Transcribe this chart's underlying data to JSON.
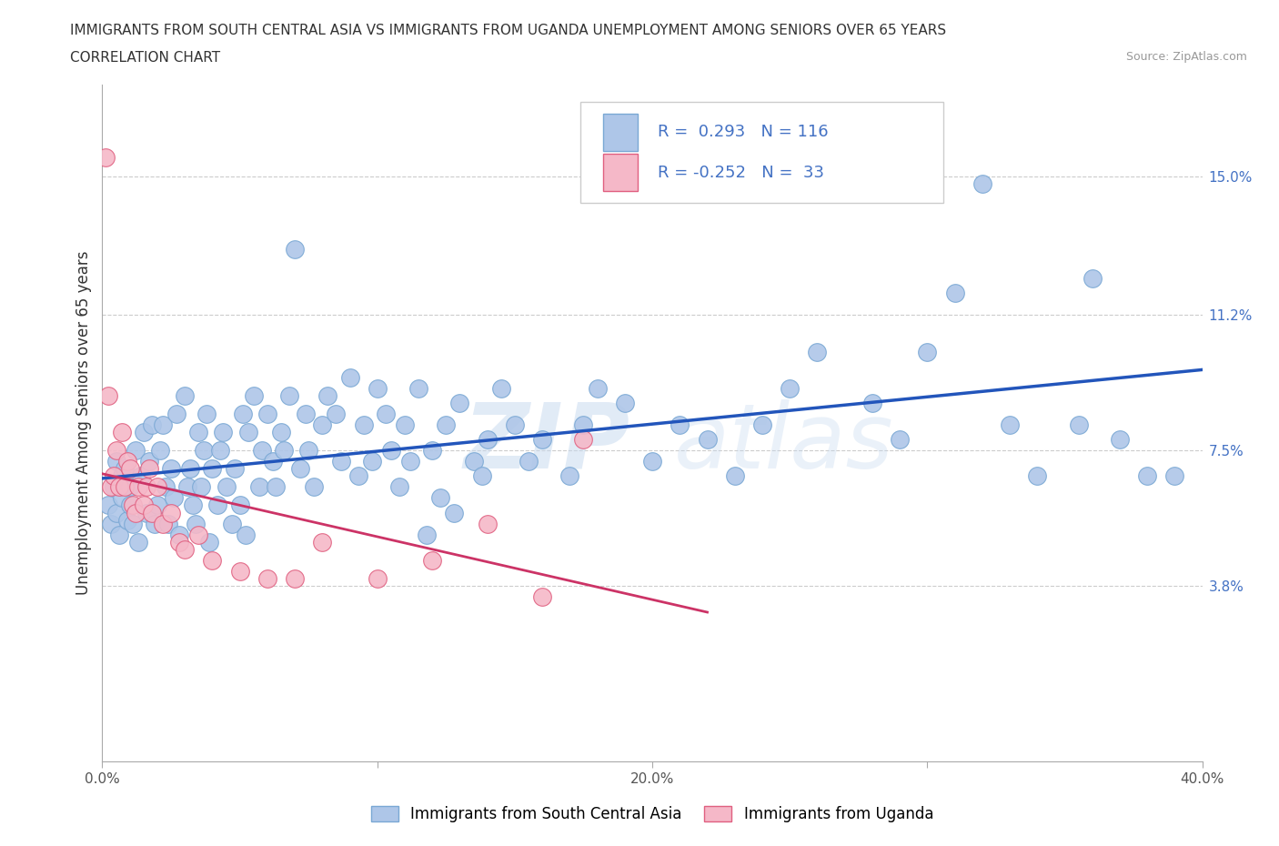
{
  "title_line1": "IMMIGRANTS FROM SOUTH CENTRAL ASIA VS IMMIGRANTS FROM UGANDA UNEMPLOYMENT AMONG SENIORS OVER 65 YEARS",
  "title_line2": "CORRELATION CHART",
  "source": "Source: ZipAtlas.com",
  "ylabel": "Unemployment Among Seniors over 65 years",
  "xlim": [
    0.0,
    0.4
  ],
  "ylim": [
    -0.01,
    0.175
  ],
  "yticks": [
    0.0,
    0.038,
    0.075,
    0.112,
    0.15
  ],
  "ytick_labels": [
    "",
    "3.8%",
    "7.5%",
    "11.2%",
    "15.0%"
  ],
  "xticks": [
    0.0,
    0.1,
    0.2,
    0.3,
    0.4
  ],
  "xtick_labels": [
    "0.0%",
    "",
    "20.0%",
    "",
    "40.0%"
  ],
  "series1_color": "#aec6e8",
  "series1_edgecolor": "#7aa8d4",
  "series2_color": "#f5b8c8",
  "series2_edgecolor": "#e06080",
  "trend1_color": "#2255bb",
  "trend2_color": "#cc3366",
  "R1": 0.293,
  "N1": 116,
  "R2": -0.252,
  "N2": 33,
  "watermark": "ZIPatlas",
  "legend_label1": "Immigrants from South Central Asia",
  "legend_label2": "Immigrants from Uganda",
  "scatter1_x": [
    0.002,
    0.003,
    0.004,
    0.005,
    0.005,
    0.006,
    0.007,
    0.007,
    0.008,
    0.009,
    0.01,
    0.01,
    0.011,
    0.012,
    0.013,
    0.014,
    0.015,
    0.016,
    0.017,
    0.018,
    0.019,
    0.02,
    0.021,
    0.022,
    0.023,
    0.024,
    0.025,
    0.026,
    0.027,
    0.028,
    0.03,
    0.031,
    0.032,
    0.033,
    0.034,
    0.035,
    0.036,
    0.037,
    0.038,
    0.039,
    0.04,
    0.042,
    0.043,
    0.044,
    0.045,
    0.047,
    0.048,
    0.05,
    0.051,
    0.052,
    0.053,
    0.055,
    0.057,
    0.058,
    0.06,
    0.062,
    0.063,
    0.065,
    0.066,
    0.068,
    0.07,
    0.072,
    0.074,
    0.075,
    0.077,
    0.08,
    0.082,
    0.085,
    0.087,
    0.09,
    0.093,
    0.095,
    0.098,
    0.1,
    0.103,
    0.105,
    0.108,
    0.11,
    0.112,
    0.115,
    0.118,
    0.12,
    0.123,
    0.125,
    0.128,
    0.13,
    0.135,
    0.138,
    0.14,
    0.145,
    0.15,
    0.155,
    0.16,
    0.17,
    0.175,
    0.18,
    0.19,
    0.2,
    0.21,
    0.22,
    0.23,
    0.24,
    0.25,
    0.26,
    0.28,
    0.29,
    0.3,
    0.31,
    0.32,
    0.33,
    0.34,
    0.355,
    0.36,
    0.37,
    0.38,
    0.39
  ],
  "scatter1_y": [
    0.06,
    0.055,
    0.065,
    0.058,
    0.072,
    0.052,
    0.068,
    0.062,
    0.07,
    0.056,
    0.065,
    0.06,
    0.055,
    0.075,
    0.05,
    0.068,
    0.08,
    0.058,
    0.072,
    0.082,
    0.055,
    0.06,
    0.075,
    0.082,
    0.065,
    0.055,
    0.07,
    0.062,
    0.085,
    0.052,
    0.09,
    0.065,
    0.07,
    0.06,
    0.055,
    0.08,
    0.065,
    0.075,
    0.085,
    0.05,
    0.07,
    0.06,
    0.075,
    0.08,
    0.065,
    0.055,
    0.07,
    0.06,
    0.085,
    0.052,
    0.08,
    0.09,
    0.065,
    0.075,
    0.085,
    0.072,
    0.065,
    0.08,
    0.075,
    0.09,
    0.13,
    0.07,
    0.085,
    0.075,
    0.065,
    0.082,
    0.09,
    0.085,
    0.072,
    0.095,
    0.068,
    0.082,
    0.072,
    0.092,
    0.085,
    0.075,
    0.065,
    0.082,
    0.072,
    0.092,
    0.052,
    0.075,
    0.062,
    0.082,
    0.058,
    0.088,
    0.072,
    0.068,
    0.078,
    0.092,
    0.082,
    0.072,
    0.078,
    0.068,
    0.082,
    0.092,
    0.088,
    0.072,
    0.082,
    0.078,
    0.068,
    0.082,
    0.092,
    0.102,
    0.088,
    0.078,
    0.102,
    0.118,
    0.148,
    0.082,
    0.068,
    0.082,
    0.122,
    0.078,
    0.068,
    0.068
  ],
  "scatter2_x": [
    0.001,
    0.002,
    0.003,
    0.004,
    0.005,
    0.006,
    0.007,
    0.008,
    0.009,
    0.01,
    0.011,
    0.012,
    0.013,
    0.015,
    0.016,
    0.017,
    0.018,
    0.02,
    0.022,
    0.025,
    0.028,
    0.03,
    0.035,
    0.04,
    0.05,
    0.06,
    0.07,
    0.08,
    0.1,
    0.12,
    0.14,
    0.16,
    0.175
  ],
  "scatter2_y": [
    0.155,
    0.09,
    0.065,
    0.068,
    0.075,
    0.065,
    0.08,
    0.065,
    0.072,
    0.07,
    0.06,
    0.058,
    0.065,
    0.06,
    0.065,
    0.07,
    0.058,
    0.065,
    0.055,
    0.058,
    0.05,
    0.048,
    0.052,
    0.045,
    0.042,
    0.04,
    0.04,
    0.05,
    0.04,
    0.045,
    0.055,
    0.035,
    0.078
  ],
  "trend2_x_start": 0.0,
  "trend2_x_end": 0.195,
  "grid_color": "#cccccc",
  "spine_color": "#aaaaaa"
}
